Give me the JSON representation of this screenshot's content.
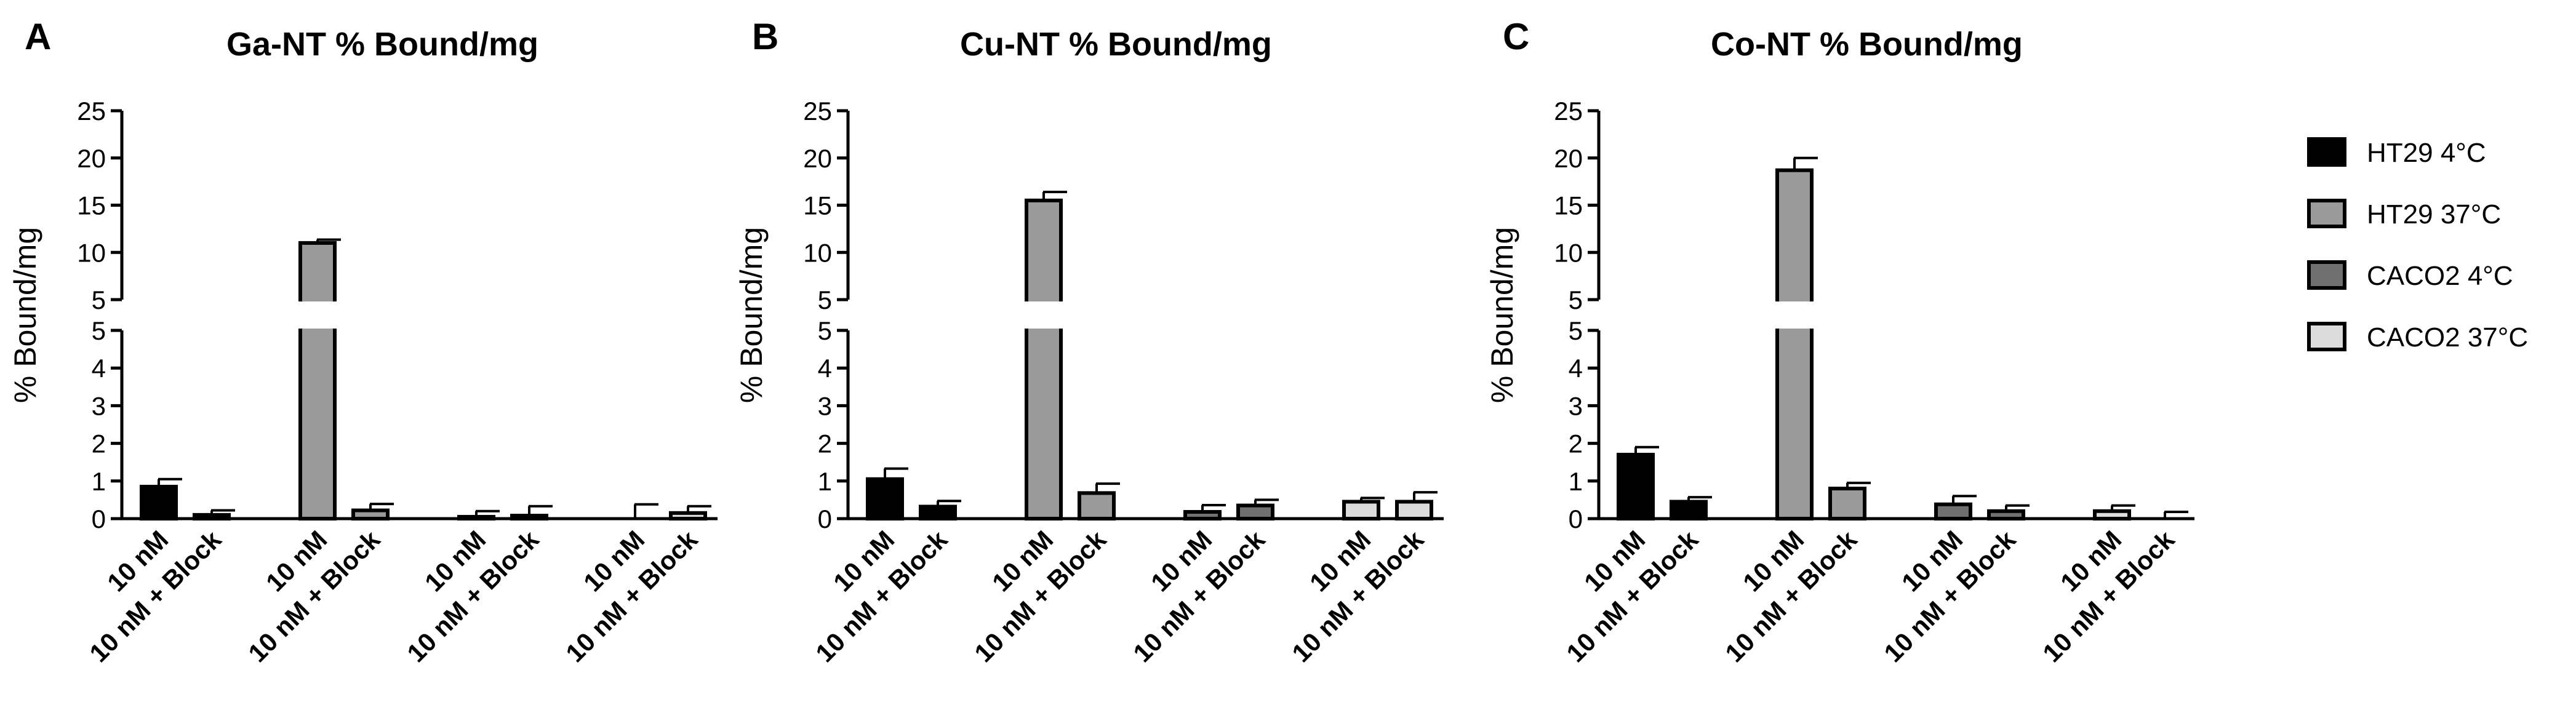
{
  "legend": [
    {
      "label": "HT29 4°C",
      "color": "#000000"
    },
    {
      "label": "HT29 37°C",
      "color": "#9a9a9a"
    },
    {
      "label": "CACO2 4°C",
      "color": "#707070"
    },
    {
      "label": "CACO2 37°C",
      "color": "#dcdcdc"
    }
  ],
  "chart_data": [
    {
      "type": "bar",
      "letter": "A",
      "title": "Ga-NT % Bound/mg",
      "ylabel": "% Bound/mg",
      "xlabel": "",
      "categories": [
        "10 nM",
        "10 nM + Block",
        "10 nM",
        "10 nM + Block",
        "10 nM",
        "10 nM + Block",
        "10 nM",
        "10 nM + Block"
      ],
      "bar_groups": [
        "HT29 4°C",
        "HT29 4°C",
        "HT29 37°C",
        "HT29 37°C",
        "CACO2 4°C",
        "CACO2 4°C",
        "CACO2 37°C",
        "CACO2 37°C"
      ],
      "values": [
        0.85,
        0.1,
        11.0,
        0.22,
        0.05,
        0.08,
        0.0,
        0.15
      ],
      "errors": [
        0.2,
        0.12,
        0.35,
        0.17,
        0.15,
        0.25,
        0.38,
        0.18
      ],
      "ylim": [
        0,
        25
      ],
      "y_break": {
        "lower": [
          0,
          5
        ],
        "upper": [
          5,
          25
        ]
      },
      "yticks_lower": [
        "0",
        "1",
        "2",
        "3",
        "4",
        "5"
      ],
      "yticks_upper": [
        "5",
        "10",
        "15",
        "20",
        "25"
      ]
    },
    {
      "type": "bar",
      "letter": "B",
      "title": "Cu-NT % Bound/mg",
      "ylabel": "% Bound/mg",
      "xlabel": "",
      "categories": [
        "10 nM",
        "10 nM + Block",
        "10 nM",
        "10 nM + Block",
        "10 nM",
        "10 nM + Block",
        "10 nM",
        "10 nM + Block"
      ],
      "bar_groups": [
        "HT29 4°C",
        "HT29 4°C",
        "HT29 37°C",
        "HT29 37°C",
        "CACO2 4°C",
        "CACO2 4°C",
        "CACO2 37°C",
        "CACO2 37°C"
      ],
      "values": [
        1.05,
        0.32,
        15.5,
        0.68,
        0.18,
        0.35,
        0.45,
        0.45
      ],
      "errors": [
        0.28,
        0.15,
        0.9,
        0.25,
        0.18,
        0.15,
        0.1,
        0.25
      ],
      "ylim": [
        0,
        25
      ],
      "y_break": {
        "lower": [
          0,
          5
        ],
        "upper": [
          5,
          25
        ]
      },
      "yticks_lower": [
        "0",
        "1",
        "2",
        "3",
        "4",
        "5"
      ],
      "yticks_upper": [
        "5",
        "10",
        "15",
        "20",
        "25"
      ]
    },
    {
      "type": "bar",
      "letter": "C",
      "title": "Co-NT % Bound/mg",
      "ylabel": "% Bound/mg",
      "xlabel": "",
      "categories": [
        "10 nM",
        "10 nM + Block",
        "10 nM",
        "10 nM + Block",
        "10 nM",
        "10 nM + Block",
        "10 nM",
        "10 nM + Block"
      ],
      "bar_groups": [
        "HT29 4°C",
        "HT29 4°C",
        "HT29 37°C",
        "HT29 37°C",
        "CACO2 4°C",
        "CACO2 4°C",
        "CACO2 37°C",
        "CACO2 37°C"
      ],
      "values": [
        1.7,
        0.45,
        18.7,
        0.8,
        0.38,
        0.2,
        0.2,
        0.0
      ],
      "errors": [
        0.2,
        0.12,
        1.3,
        0.15,
        0.22,
        0.15,
        0.15,
        0.18
      ],
      "ylim": [
        0,
        25
      ],
      "y_break": {
        "lower": [
          0,
          5
        ],
        "upper": [
          5,
          25
        ]
      },
      "yticks_lower": [
        "0",
        "1",
        "2",
        "3",
        "4",
        "5"
      ],
      "yticks_upper": [
        "5",
        "10",
        "15",
        "20",
        "25"
      ]
    }
  ]
}
